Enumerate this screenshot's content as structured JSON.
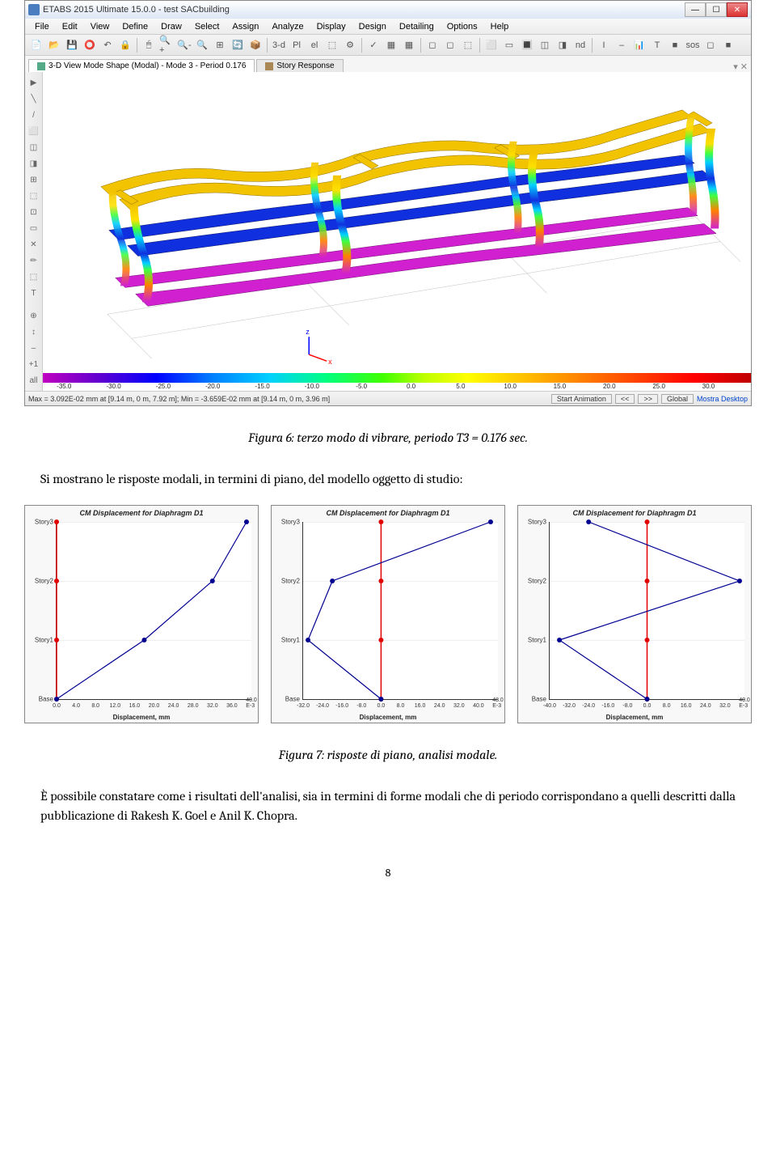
{
  "app": {
    "title": "ETABS 2015 Ultimate 15.0.0 - test SACbuilding",
    "menus": [
      "File",
      "Edit",
      "View",
      "Define",
      "Draw",
      "Select",
      "Assign",
      "Analyze",
      "Display",
      "Design",
      "Detailing",
      "Options",
      "Help"
    ],
    "tabs": [
      {
        "icon": "cube",
        "label": "3-D View  Mode Shape (Modal) - Mode 3 - Period 0.176"
      },
      {
        "icon": "chart",
        "label": "Story Response"
      }
    ],
    "status_left": "Max = 3.092E-02 mm at [9.14 m, 0 m, 7.92 m];  Min = -3.659E-02 mm at [9.14 m, 0 m, 3.96 m]",
    "status_buttons": [
      "Start Animation",
      "<<",
      ">>",
      "Global"
    ],
    "status_desktop": "Mostra Desktop"
  },
  "toolbar1_icons": [
    "📄",
    "📂",
    "💾",
    "⭕",
    "↶",
    "🔒",
    "",
    "🖱",
    "🔍+",
    "🔍-",
    "🔍",
    "⊞",
    "🔄",
    "📦",
    "",
    "3-d",
    "Pl",
    "el",
    "⬚",
    "⚙",
    "",
    "✓",
    "▦",
    "▦",
    "",
    "◻",
    "◻",
    "⬚",
    "",
    "⬜",
    "▭",
    "🔳",
    "◫",
    "◨",
    "nd",
    "",
    "I",
    "–",
    "📊",
    "T",
    "■",
    "sos",
    "◻",
    "■"
  ],
  "side_icons": [
    "▶",
    "╲",
    "/",
    "⬜",
    "◫",
    "◨",
    "⊞",
    "⬚",
    "⊡",
    "▭",
    "✕",
    "✏",
    "⬚",
    "T",
    "",
    "⊕",
    "↕",
    "–",
    "+1",
    "all"
  ],
  "colorbar": {
    "ticks": [
      {
        "pct": 3,
        "label": "-35.0"
      },
      {
        "pct": 10,
        "label": "-30.0"
      },
      {
        "pct": 17,
        "label": "-25.0"
      },
      {
        "pct": 24,
        "label": "-20.0"
      },
      {
        "pct": 31,
        "label": "-15.0"
      },
      {
        "pct": 38,
        "label": "-10.0"
      },
      {
        "pct": 45,
        "label": "-5.0"
      },
      {
        "pct": 52,
        "label": "0.0"
      },
      {
        "pct": 59,
        "label": "5.0"
      },
      {
        "pct": 66,
        "label": "10.0"
      },
      {
        "pct": 73,
        "label": "15.0"
      },
      {
        "pct": 80,
        "label": "20.0"
      },
      {
        "pct": 87,
        "label": "25.0"
      },
      {
        "pct": 94,
        "label": "30.0"
      }
    ]
  },
  "captions": {
    "fig6": "Figura 6: terzo modo di vibrare, periodo T3 = 0.176 sec.",
    "intro": "Si mostrano le risposte modali, in termini di piano, del modello oggetto di studio:",
    "fig7": "Figura 7: risposte di piano, analisi modale.",
    "para": "È possibile constatare come i risultati dell'analisi, sia in termini di forme modali che di periodo corrispondano a quelli descritti dalla pubblicazione di Rakesh K. Goel e Anil K. Chopra.",
    "page": "8"
  },
  "charts": {
    "title": "CM Displacement for Diaphragm D1",
    "xlabel": "Displacement, mm",
    "ylevels": [
      "Story3",
      "Story2",
      "Story1",
      "Base"
    ],
    "chart1": {
      "xticks": [
        "0.0",
        "4.0",
        "8.0",
        "12.0",
        "16.0",
        "20.0",
        "24.0",
        "28.0",
        "32.0",
        "36.0",
        "40.0 E-3"
      ],
      "xmin": 0,
      "xmax": 40,
      "red_x": 0,
      "blue_pts": [
        [
          0,
          0
        ],
        [
          18,
          1
        ],
        [
          32,
          2
        ],
        [
          39,
          3
        ]
      ]
    },
    "chart2": {
      "xticks": [
        "-32.0",
        "-24.0",
        "-16.0",
        "-8.0",
        "0.0",
        "8.0",
        "16.0",
        "24.0",
        "32.0",
        "40.0",
        "48.0 E-3"
      ],
      "xmin": -32,
      "xmax": 48,
      "red_x": 0,
      "blue_pts": [
        [
          0,
          0
        ],
        [
          -30,
          1
        ],
        [
          -20,
          2
        ],
        [
          45,
          3
        ]
      ]
    },
    "chart3": {
      "xticks": [
        "-40.0",
        "-32.0",
        "-24.0",
        "-16.0",
        "-8.0",
        "0.0",
        "8.0",
        "16.0",
        "24.0",
        "32.0",
        "40.0 E-3"
      ],
      "xmin": -40,
      "xmax": 40,
      "red_x": 0,
      "blue_pts": [
        [
          0,
          0
        ],
        [
          -36,
          1
        ],
        [
          38,
          2
        ],
        [
          -24,
          3
        ]
      ]
    }
  },
  "colors": {
    "yellow": "#f2c300",
    "blue": "#1030e0",
    "magenta": "#d020d0",
    "cyan": "#00c8e8",
    "green": "#30d030",
    "orange": "#ff9000",
    "red": "#ff2000",
    "ltblue": "#40a0ff"
  }
}
